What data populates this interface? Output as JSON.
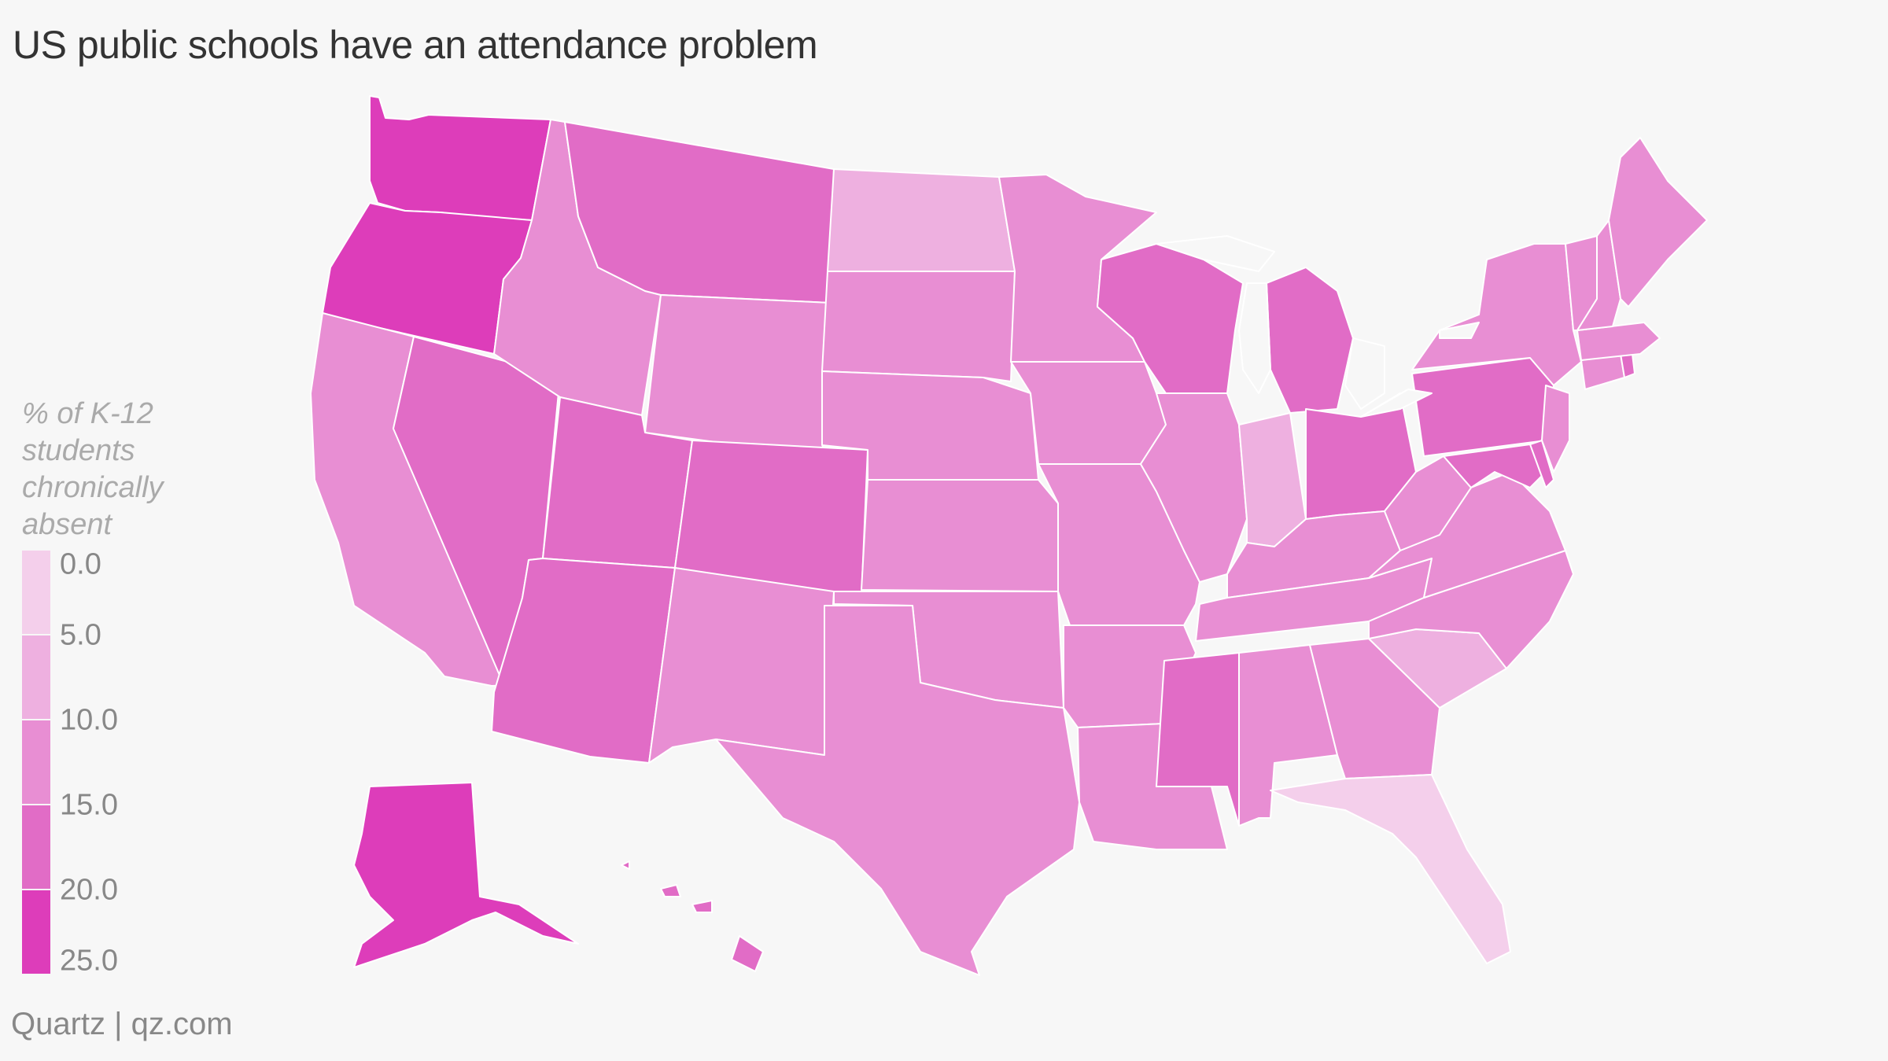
{
  "title": "US public schools have an attendance problem",
  "legend": {
    "title": "% of K-12 students chronically absent",
    "ticks": [
      "0.0",
      "5.0",
      "10.0",
      "15.0",
      "20.0",
      "25.0"
    ],
    "bins": [
      {
        "range": [
          0,
          5
        ],
        "color": "#f4cfeb"
      },
      {
        "range": [
          5,
          10
        ],
        "color": "#eeb0e0"
      },
      {
        "range": [
          10,
          15
        ],
        "color": "#e88ed3"
      },
      {
        "range": [
          15,
          20
        ],
        "color": "#e16cc6"
      },
      {
        "range": [
          20,
          25
        ],
        "color": "#dd3dba"
      }
    ]
  },
  "source": "Quartz | qz.com",
  "map_data": {
    "type": "choropleth",
    "region": "United States",
    "states": [
      {
        "state": "Washington",
        "bin": 4
      },
      {
        "state": "Oregon",
        "bin": 4
      },
      {
        "state": "Alaska",
        "bin": 4
      },
      {
        "state": "California",
        "bin": 2
      },
      {
        "state": "Nevada",
        "bin": 3
      },
      {
        "state": "Idaho",
        "bin": 2
      },
      {
        "state": "Montana",
        "bin": 3
      },
      {
        "state": "Wyoming",
        "bin": 2
      },
      {
        "state": "Utah",
        "bin": 3
      },
      {
        "state": "Arizona",
        "bin": 3
      },
      {
        "state": "Colorado",
        "bin": 3
      },
      {
        "state": "New Mexico",
        "bin": 2
      },
      {
        "state": "North Dakota",
        "bin": 1
      },
      {
        "state": "South Dakota",
        "bin": 2
      },
      {
        "state": "Nebraska",
        "bin": 2
      },
      {
        "state": "Kansas",
        "bin": 2
      },
      {
        "state": "Oklahoma",
        "bin": 2
      },
      {
        "state": "Texas",
        "bin": 2
      },
      {
        "state": "Minnesota",
        "bin": 2
      },
      {
        "state": "Iowa",
        "bin": 2
      },
      {
        "state": "Missouri",
        "bin": 2
      },
      {
        "state": "Arkansas",
        "bin": 2
      },
      {
        "state": "Louisiana",
        "bin": 2
      },
      {
        "state": "Wisconsin",
        "bin": 3
      },
      {
        "state": "Illinois",
        "bin": 2
      },
      {
        "state": "Michigan",
        "bin": 3
      },
      {
        "state": "Indiana",
        "bin": 1
      },
      {
        "state": "Ohio",
        "bin": 3
      },
      {
        "state": "Kentucky",
        "bin": 2
      },
      {
        "state": "Tennessee",
        "bin": 2
      },
      {
        "state": "Mississippi",
        "bin": 3
      },
      {
        "state": "Alabama",
        "bin": 2
      },
      {
        "state": "Georgia",
        "bin": 2
      },
      {
        "state": "Florida",
        "bin": 0
      },
      {
        "state": "South Carolina",
        "bin": 1
      },
      {
        "state": "North Carolina",
        "bin": 2
      },
      {
        "state": "Virginia",
        "bin": 2
      },
      {
        "state": "West Virginia",
        "bin": 2
      },
      {
        "state": "Pennsylvania",
        "bin": 3
      },
      {
        "state": "New York",
        "bin": 2
      },
      {
        "state": "Maryland",
        "bin": 3
      },
      {
        "state": "Delaware",
        "bin": 3
      },
      {
        "state": "New Jersey",
        "bin": 2
      },
      {
        "state": "Connecticut",
        "bin": 2
      },
      {
        "state": "Rhode Island",
        "bin": 3
      },
      {
        "state": "Massachusetts",
        "bin": 2
      },
      {
        "state": "Vermont",
        "bin": 2
      },
      {
        "state": "New Hampshire",
        "bin": 2
      },
      {
        "state": "Maine",
        "bin": 2
      },
      {
        "state": "Hawaii",
        "bin": 3
      }
    ]
  }
}
